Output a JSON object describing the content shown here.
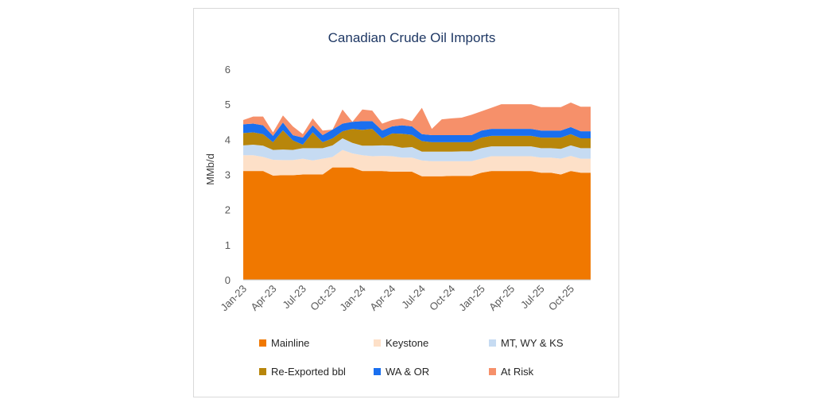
{
  "chart_data": {
    "type": "area",
    "stacked": true,
    "title": "Canadian Crude Oil Imports",
    "xlabel": "",
    "ylabel": "MMb/d",
    "ylim": [
      0,
      6
    ],
    "yticks": [
      "0",
      "1",
      "2",
      "3",
      "4",
      "5",
      "6"
    ],
    "grid": false,
    "legend_position": "bottom",
    "x": [
      "Jan-23",
      "Feb-23",
      "Mar-23",
      "Apr-23",
      "May-23",
      "Jun-23",
      "Jul-23",
      "Aug-23",
      "Sep-23",
      "Oct-23",
      "Nov-23",
      "Dec-23",
      "Jan-24",
      "Feb-24",
      "Mar-24",
      "Apr-24",
      "May-24",
      "Jun-24",
      "Jul-24",
      "Aug-24",
      "Sep-24",
      "Oct-24",
      "Nov-24",
      "Dec-24",
      "Jan-25",
      "Feb-25",
      "Mar-25",
      "Apr-25",
      "May-25",
      "Jun-25",
      "Jul-25",
      "Aug-25",
      "Sep-25",
      "Oct-25",
      "Nov-25",
      "Dec-25"
    ],
    "xtick_labels": [
      "Jan-23",
      "Apr-23",
      "Jul-23",
      "Oct-23",
      "Jan-24",
      "Apr-24",
      "Jul-24",
      "Oct-24",
      "Jan-25",
      "Apr-25",
      "Jul-25",
      "Oct-25"
    ],
    "series": [
      {
        "name": "Mainline",
        "color": "#f07800",
        "values": [
          3.1,
          3.1,
          3.1,
          2.97,
          2.98,
          2.98,
          3.0,
          3.0,
          3.0,
          3.2,
          3.2,
          3.2,
          3.1,
          3.1,
          3.1,
          3.08,
          3.08,
          3.08,
          2.95,
          2.95,
          2.95,
          2.96,
          2.96,
          2.96,
          3.05,
          3.1,
          3.1,
          3.1,
          3.1,
          3.1,
          3.05,
          3.05,
          3.0,
          3.1,
          3.05,
          3.05
        ]
      },
      {
        "name": "Keystone",
        "color": "#fde0c8",
        "values": [
          0.45,
          0.45,
          0.4,
          0.45,
          0.43,
          0.43,
          0.45,
          0.4,
          0.45,
          0.3,
          0.5,
          0.4,
          0.45,
          0.42,
          0.43,
          0.44,
          0.4,
          0.4,
          0.45,
          0.43,
          0.43,
          0.42,
          0.42,
          0.42,
          0.4,
          0.42,
          0.42,
          0.42,
          0.42,
          0.42,
          0.43,
          0.43,
          0.45,
          0.43,
          0.4,
          0.4
        ]
      },
      {
        "name": "MT, WY & KS",
        "color": "#c6dbf2",
        "values": [
          0.28,
          0.3,
          0.32,
          0.28,
          0.3,
          0.29,
          0.3,
          0.35,
          0.3,
          0.33,
          0.33,
          0.3,
          0.27,
          0.3,
          0.3,
          0.3,
          0.28,
          0.3,
          0.25,
          0.27,
          0.27,
          0.27,
          0.28,
          0.28,
          0.3,
          0.28,
          0.28,
          0.28,
          0.28,
          0.28,
          0.27,
          0.27,
          0.28,
          0.3,
          0.3,
          0.3
        ]
      },
      {
        "name": "Re-Exported bbl",
        "color": "#b8860b",
        "values": [
          0.35,
          0.35,
          0.33,
          0.22,
          0.55,
          0.27,
          0.1,
          0.45,
          0.17,
          0.2,
          0.2,
          0.4,
          0.45,
          0.48,
          0.2,
          0.35,
          0.4,
          0.35,
          0.3,
          0.27,
          0.27,
          0.27,
          0.26,
          0.26,
          0.3,
          0.3,
          0.3,
          0.3,
          0.3,
          0.3,
          0.3,
          0.3,
          0.32,
          0.32,
          0.28,
          0.28
        ]
      },
      {
        "name": "WA & OR",
        "color": "#1a6fef",
        "values": [
          0.25,
          0.25,
          0.25,
          0.18,
          0.22,
          0.15,
          0.2,
          0.2,
          0.2,
          0.25,
          0.22,
          0.2,
          0.25,
          0.22,
          0.22,
          0.2,
          0.24,
          0.24,
          0.2,
          0.2,
          0.2,
          0.2,
          0.2,
          0.2,
          0.2,
          0.2,
          0.2,
          0.2,
          0.2,
          0.2,
          0.2,
          0.2,
          0.2,
          0.2,
          0.2,
          0.2
        ]
      },
      {
        "name": "At Risk",
        "color": "#f6906a",
        "values": [
          0.12,
          0.2,
          0.25,
          0.1,
          0.2,
          0.25,
          0.1,
          0.2,
          0.13,
          0.0,
          0.4,
          0.0,
          0.33,
          0.3,
          0.2,
          0.18,
          0.2,
          0.15,
          0.75,
          0.18,
          0.45,
          0.48,
          0.5,
          0.58,
          0.55,
          0.6,
          0.7,
          0.7,
          0.7,
          0.7,
          0.67,
          0.67,
          0.67,
          0.7,
          0.7,
          0.7
        ]
      }
    ]
  }
}
